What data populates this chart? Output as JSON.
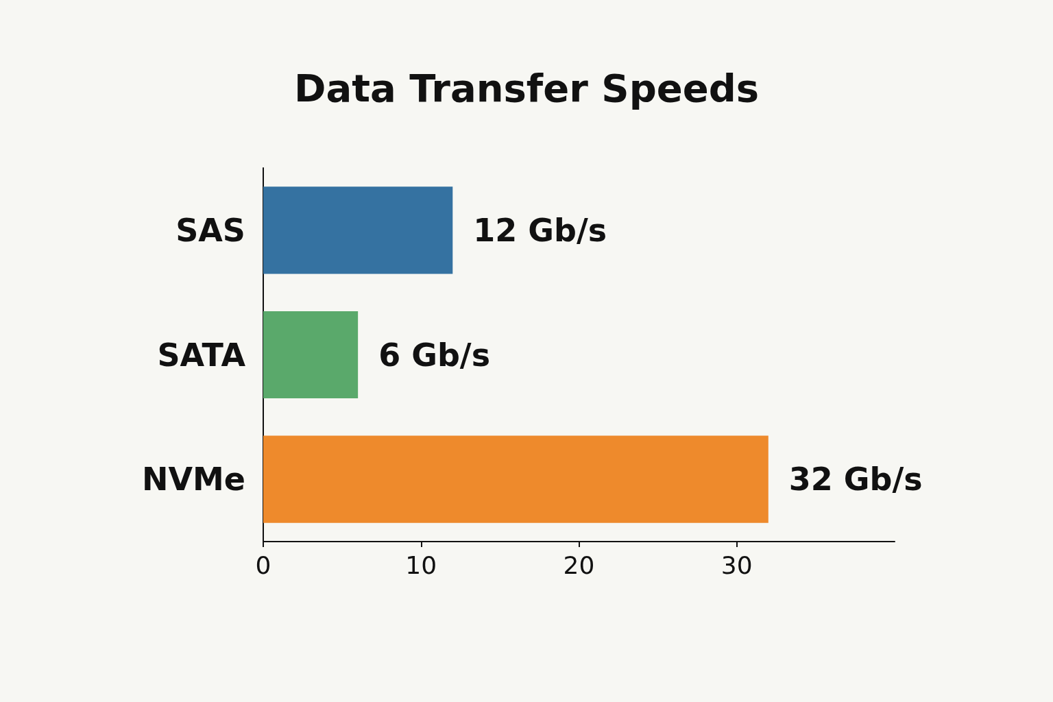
{
  "chart_data": {
    "type": "bar",
    "title": "Data Transfer Speeds",
    "orientation": "horizontal",
    "categories": [
      "SAS",
      "SATA",
      "NVMe"
    ],
    "values": [
      12,
      6,
      32
    ],
    "colors": [
      "#3572a1",
      "#5aa96b",
      "#ee8a2c"
    ],
    "value_labels": [
      "12 Gb/s",
      "6 Gb/s",
      "32 Gb/s"
    ],
    "xlim": [
      0,
      40
    ],
    "xticks": [
      0,
      10,
      20,
      30
    ]
  }
}
